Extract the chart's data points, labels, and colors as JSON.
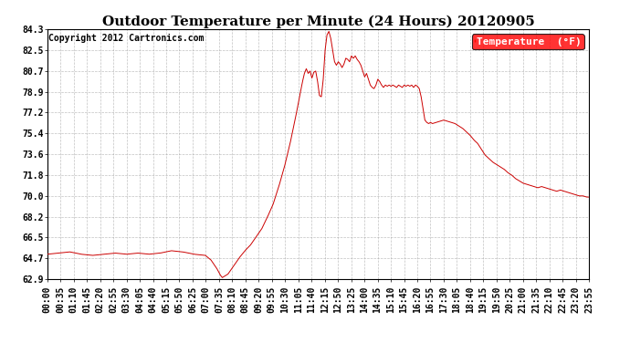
{
  "title": "Outdoor Temperature per Minute (24 Hours) 20120905",
  "copyright_text": "Copyright 2012 Cartronics.com",
  "legend_label": "Temperature  (°F)",
  "line_color": "#cc0000",
  "background_color": "#ffffff",
  "grid_color": "#999999",
  "ylim": [
    62.9,
    84.3
  ],
  "yticks": [
    62.9,
    64.7,
    66.5,
    68.2,
    70.0,
    71.8,
    73.6,
    75.4,
    77.2,
    78.9,
    80.7,
    82.5,
    84.3
  ],
  "title_fontsize": 11,
  "copyright_fontsize": 7,
  "tick_fontsize": 7,
  "legend_fontsize": 8,
  "x_tick_labels": [
    "00:00",
    "00:35",
    "01:10",
    "01:45",
    "02:20",
    "02:55",
    "03:30",
    "04:05",
    "04:40",
    "05:15",
    "05:50",
    "06:25",
    "07:00",
    "07:35",
    "08:10",
    "08:45",
    "09:20",
    "09:55",
    "10:30",
    "11:05",
    "11:40",
    "12:15",
    "12:50",
    "13:25",
    "14:00",
    "14:35",
    "15:10",
    "15:45",
    "16:20",
    "16:55",
    "17:30",
    "18:05",
    "18:40",
    "19:15",
    "19:50",
    "20:25",
    "21:00",
    "21:35",
    "22:10",
    "22:45",
    "23:20",
    "23:55"
  ],
  "num_minutes": 1440,
  "key_points": [
    [
      0,
      65.0
    ],
    [
      30,
      65.1
    ],
    [
      60,
      65.2
    ],
    [
      90,
      65.0
    ],
    [
      120,
      64.9
    ],
    [
      150,
      65.0
    ],
    [
      180,
      65.1
    ],
    [
      210,
      65.0
    ],
    [
      240,
      65.1
    ],
    [
      270,
      65.0
    ],
    [
      300,
      65.1
    ],
    [
      330,
      65.3
    ],
    [
      360,
      65.2
    ],
    [
      390,
      65.0
    ],
    [
      420,
      64.9
    ],
    [
      435,
      64.5
    ],
    [
      450,
      63.8
    ],
    [
      460,
      63.2
    ],
    [
      465,
      63.0
    ],
    [
      470,
      63.1
    ],
    [
      480,
      63.3
    ],
    [
      495,
      64.0
    ],
    [
      510,
      64.7
    ],
    [
      525,
      65.3
    ],
    [
      540,
      65.8
    ],
    [
      555,
      66.5
    ],
    [
      570,
      67.2
    ],
    [
      585,
      68.2
    ],
    [
      600,
      69.3
    ],
    [
      615,
      70.8
    ],
    [
      630,
      72.5
    ],
    [
      645,
      74.5
    ],
    [
      660,
      76.8
    ],
    [
      670,
      78.5
    ],
    [
      678,
      79.8
    ],
    [
      683,
      80.5
    ],
    [
      688,
      80.9
    ],
    [
      693,
      80.5
    ],
    [
      698,
      80.7
    ],
    [
      703,
      80.1
    ],
    [
      708,
      80.6
    ],
    [
      713,
      80.7
    ],
    [
      718,
      79.8
    ],
    [
      723,
      78.6
    ],
    [
      728,
      78.5
    ],
    [
      733,
      80.0
    ],
    [
      738,
      82.5
    ],
    [
      743,
      83.8
    ],
    [
      748,
      84.1
    ],
    [
      753,
      83.5
    ],
    [
      758,
      82.5
    ],
    [
      763,
      81.5
    ],
    [
      768,
      81.2
    ],
    [
      773,
      81.5
    ],
    [
      778,
      81.3
    ],
    [
      783,
      81.0
    ],
    [
      788,
      81.3
    ],
    [
      793,
      81.8
    ],
    [
      798,
      81.7
    ],
    [
      803,
      81.5
    ],
    [
      808,
      82.0
    ],
    [
      813,
      81.8
    ],
    [
      818,
      82.0
    ],
    [
      823,
      81.7
    ],
    [
      828,
      81.5
    ],
    [
      833,
      81.2
    ],
    [
      838,
      80.7
    ],
    [
      843,
      80.2
    ],
    [
      848,
      80.5
    ],
    [
      853,
      80.0
    ],
    [
      858,
      79.5
    ],
    [
      863,
      79.3
    ],
    [
      868,
      79.2
    ],
    [
      873,
      79.5
    ],
    [
      878,
      80.0
    ],
    [
      883,
      79.8
    ],
    [
      888,
      79.5
    ],
    [
      893,
      79.3
    ],
    [
      898,
      79.5
    ],
    [
      903,
      79.4
    ],
    [
      908,
      79.5
    ],
    [
      913,
      79.4
    ],
    [
      918,
      79.5
    ],
    [
      923,
      79.4
    ],
    [
      928,
      79.3
    ],
    [
      933,
      79.5
    ],
    [
      938,
      79.4
    ],
    [
      943,
      79.3
    ],
    [
      948,
      79.5
    ],
    [
      953,
      79.4
    ],
    [
      958,
      79.5
    ],
    [
      963,
      79.4
    ],
    [
      968,
      79.5
    ],
    [
      973,
      79.3
    ],
    [
      978,
      79.5
    ],
    [
      983,
      79.4
    ],
    [
      988,
      79.2
    ],
    [
      993,
      78.5
    ],
    [
      998,
      77.5
    ],
    [
      1003,
      76.5
    ],
    [
      1008,
      76.3
    ],
    [
      1013,
      76.2
    ],
    [
      1018,
      76.3
    ],
    [
      1023,
      76.2
    ],
    [
      1033,
      76.3
    ],
    [
      1043,
      76.4
    ],
    [
      1053,
      76.5
    ],
    [
      1063,
      76.4
    ],
    [
      1073,
      76.3
    ],
    [
      1083,
      76.2
    ],
    [
      1093,
      76.0
    ],
    [
      1103,
      75.8
    ],
    [
      1113,
      75.5
    ],
    [
      1123,
      75.2
    ],
    [
      1133,
      74.8
    ],
    [
      1143,
      74.5
    ],
    [
      1153,
      74.0
    ],
    [
      1163,
      73.5
    ],
    [
      1173,
      73.2
    ],
    [
      1183,
      72.9
    ],
    [
      1193,
      72.7
    ],
    [
      1203,
      72.5
    ],
    [
      1213,
      72.3
    ],
    [
      1223,
      72.0
    ],
    [
      1233,
      71.8
    ],
    [
      1243,
      71.5
    ],
    [
      1253,
      71.3
    ],
    [
      1263,
      71.1
    ],
    [
      1273,
      71.0
    ],
    [
      1283,
      70.9
    ],
    [
      1293,
      70.8
    ],
    [
      1303,
      70.7
    ],
    [
      1313,
      70.8
    ],
    [
      1323,
      70.7
    ],
    [
      1333,
      70.6
    ],
    [
      1343,
      70.5
    ],
    [
      1353,
      70.4
    ],
    [
      1363,
      70.5
    ],
    [
      1373,
      70.4
    ],
    [
      1383,
      70.3
    ],
    [
      1393,
      70.2
    ],
    [
      1403,
      70.1
    ],
    [
      1413,
      70.0
    ],
    [
      1423,
      70.0
    ],
    [
      1433,
      69.9
    ],
    [
      1439,
      69.9
    ]
  ]
}
